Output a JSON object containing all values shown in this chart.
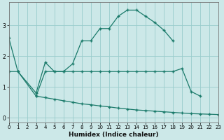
{
  "xlabel": "Humidex (Indice chaleur)",
  "background_color": "#cce8e8",
  "grid_color": "#99cccc",
  "line_color": "#1a7a6a",
  "x_ticks": [
    0,
    1,
    2,
    3,
    4,
    5,
    6,
    7,
    8,
    9,
    10,
    11,
    12,
    13,
    14,
    15,
    16,
    17,
    18,
    19,
    20,
    21,
    22,
    23
  ],
  "y_ticks": [
    0,
    1,
    2,
    3
  ],
  "xlim": [
    0,
    23
  ],
  "ylim": [
    -0.15,
    3.75
  ],
  "line1_x": [
    0,
    1,
    3,
    4,
    5,
    6,
    7,
    8,
    9,
    10,
    11,
    12,
    13,
    14,
    15,
    16,
    17,
    18
  ],
  "line1_y": [
    2.6,
    1.5,
    0.8,
    1.8,
    1.5,
    1.5,
    1.75,
    2.5,
    2.5,
    2.9,
    2.9,
    3.3,
    3.5,
    3.5,
    3.3,
    3.1,
    2.85,
    2.5
  ],
  "line2_x": [
    0,
    1,
    3,
    4,
    5,
    6,
    7,
    8,
    9,
    10,
    11,
    12,
    13,
    14,
    15,
    16,
    17,
    18,
    19,
    20,
    21
  ],
  "line2_y": [
    1.5,
    1.5,
    0.7,
    1.5,
    1.5,
    1.5,
    1.5,
    1.5,
    1.5,
    1.5,
    1.5,
    1.5,
    1.5,
    1.5,
    1.5,
    1.5,
    1.5,
    1.5,
    1.6,
    0.85,
    0.7
  ],
  "line3_x": [
    3,
    4,
    5,
    6,
    7,
    8,
    9,
    10,
    11,
    12,
    13,
    14,
    15,
    16,
    17,
    18,
    19,
    20,
    21,
    22,
    23
  ],
  "line3_y": [
    0.7,
    0.65,
    0.6,
    0.55,
    0.5,
    0.45,
    0.42,
    0.38,
    0.35,
    0.31,
    0.28,
    0.25,
    0.23,
    0.21,
    0.19,
    0.17,
    0.15,
    0.13,
    0.12,
    0.11,
    0.1
  ]
}
